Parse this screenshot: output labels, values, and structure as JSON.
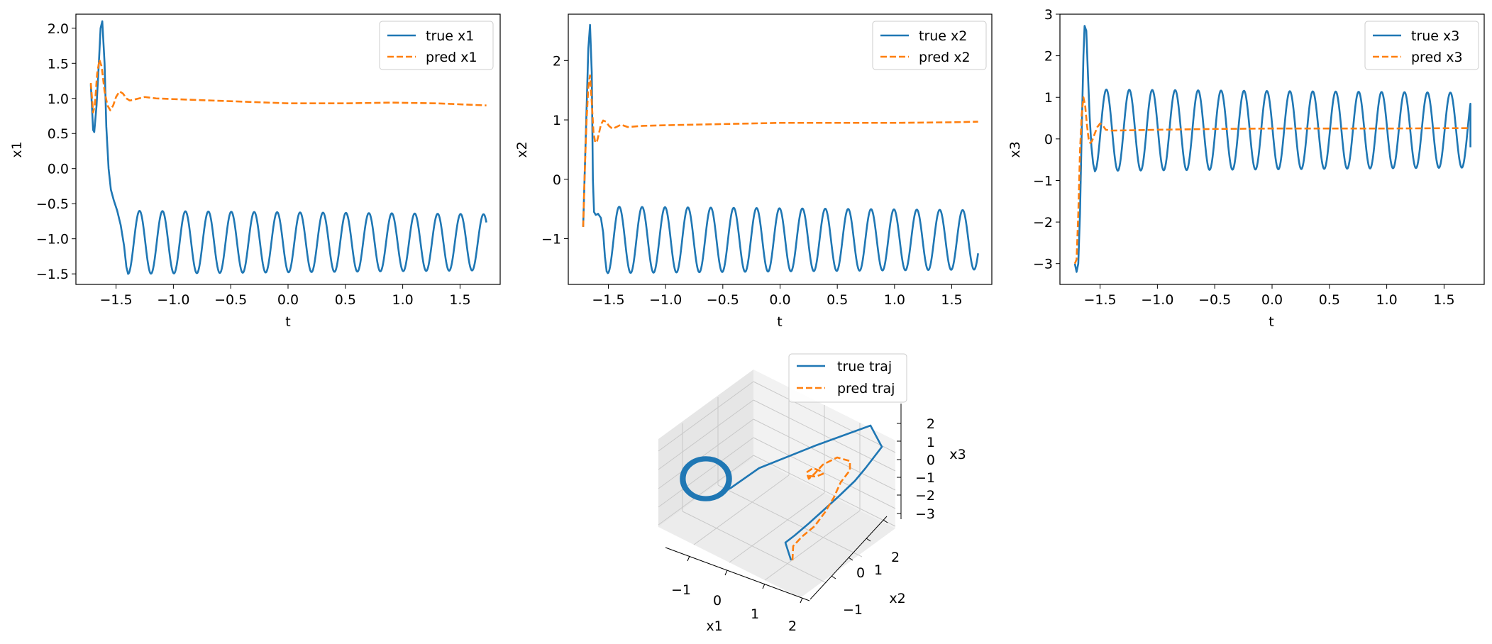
{
  "chart_data": [
    {
      "type": "line",
      "xlabel": "t",
      "ylabel": "x1",
      "xlim": [
        -1.85,
        1.85
      ],
      "ylim": [
        -1.65,
        2.2
      ],
      "xticks": [
        -1.5,
        -1.0,
        -0.5,
        0.0,
        0.5,
        1.0,
        1.5
      ],
      "xtick_labels": [
        "−1.5",
        "−1.0",
        "−0.5",
        "0.0",
        "0.5",
        "1.0",
        "1.5"
      ],
      "yticks": [
        -1.5,
        -1.0,
        -0.5,
        0.0,
        0.5,
        1.0,
        1.5,
        2.0
      ],
      "ytick_labels": [
        "−1.5",
        "−1.0",
        "−0.5",
        "0.0",
        "0.5",
        "1.0",
        "1.5",
        "2.0"
      ],
      "legend_position": "top-right",
      "series": [
        {
          "name": "true x1",
          "style": "solid",
          "color": "#1f77b4",
          "transient": [
            [
              -1.72,
              1.2
            ],
            [
              -1.7,
              0.55
            ],
            [
              -1.69,
              0.52
            ],
            [
              -1.67,
              0.9
            ],
            [
              -1.65,
              1.5
            ],
            [
              -1.635,
              2.0
            ],
            [
              -1.62,
              2.1
            ],
            [
              -1.6,
              1.5
            ],
            [
              -1.585,
              0.6
            ],
            [
              -1.565,
              0.0
            ],
            [
              -1.545,
              -0.3
            ],
            [
              -1.52,
              -0.45
            ],
            [
              -1.49,
              -0.6
            ],
            [
              -1.46,
              -0.8
            ],
            [
              -1.43,
              -1.1
            ],
            [
              -1.41,
              -1.4
            ],
            [
              -1.395,
              -1.5
            ]
          ],
          "oscillation": {
            "t_start": -1.395,
            "t_end": 1.73,
            "center": -1.05,
            "amplitude": 0.45,
            "amplitude_end": 0.4,
            "period": 0.2,
            "phase_start": "min"
          }
        },
        {
          "name": "pred x1",
          "style": "dashed",
          "color": "#ff7f0e",
          "points": [
            [
              -1.72,
              1.22
            ],
            [
              -1.7,
              0.8
            ],
            [
              -1.685,
              0.9
            ],
            [
              -1.665,
              1.35
            ],
            [
              -1.645,
              1.55
            ],
            [
              -1.625,
              1.45
            ],
            [
              -1.6,
              1.1
            ],
            [
              -1.575,
              0.9
            ],
            [
              -1.55,
              0.83
            ],
            [
              -1.525,
              0.9
            ],
            [
              -1.5,
              1.02
            ],
            [
              -1.47,
              1.1
            ],
            [
              -1.44,
              1.07
            ],
            [
              -1.41,
              1.0
            ],
            [
              -1.38,
              0.97
            ],
            [
              -1.35,
              0.98
            ],
            [
              -1.3,
              1.0
            ],
            [
              -1.25,
              1.02
            ],
            [
              -1.15,
              1.0
            ],
            [
              -1.0,
              0.99
            ],
            [
              -0.5,
              0.96
            ],
            [
              0.0,
              0.93
            ],
            [
              0.5,
              0.93
            ],
            [
              0.9,
              0.94
            ],
            [
              1.3,
              0.93
            ],
            [
              1.73,
              0.9
            ]
          ]
        }
      ]
    },
    {
      "type": "line",
      "xlabel": "t",
      "ylabel": "x2",
      "xlim": [
        -1.85,
        1.85
      ],
      "ylim": [
        -1.77,
        2.78
      ],
      "xticks": [
        -1.5,
        -1.0,
        -0.5,
        0.0,
        0.5,
        1.0,
        1.5
      ],
      "xtick_labels": [
        "−1.5",
        "−1.0",
        "−0.5",
        "0.0",
        "0.5",
        "1.0",
        "1.5"
      ],
      "yticks": [
        -1,
        0,
        1,
        2
      ],
      "ytick_labels": [
        "−1",
        "0",
        "1",
        "2"
      ],
      "legend_position": "top-right",
      "series": [
        {
          "name": "true x2",
          "style": "solid",
          "color": "#1f77b4",
          "transient": [
            [
              -1.72,
              -0.8
            ],
            [
              -1.705,
              0.2
            ],
            [
              -1.69,
              1.2
            ],
            [
              -1.675,
              2.2
            ],
            [
              -1.66,
              2.6
            ],
            [
              -1.645,
              1.8
            ],
            [
              -1.635,
              0.0
            ],
            [
              -1.625,
              -0.55
            ],
            [
              -1.61,
              -0.6
            ],
            [
              -1.59,
              -0.58
            ],
            [
              -1.565,
              -0.65
            ],
            [
              -1.545,
              -0.9
            ],
            [
              -1.53,
              -1.3
            ],
            [
              -1.515,
              -1.55
            ],
            [
              -1.505,
              -1.58
            ]
          ],
          "oscillation": {
            "t_start": -1.505,
            "t_end": 1.73,
            "center": -1.02,
            "amplitude": 0.56,
            "amplitude_end": 0.5,
            "period": 0.2,
            "phase_start": "min"
          }
        },
        {
          "name": "pred x2",
          "style": "dashed",
          "color": "#ff7f0e",
          "points": [
            [
              -1.72,
              -0.8
            ],
            [
              -1.705,
              0.2
            ],
            [
              -1.69,
              1.0
            ],
            [
              -1.675,
              1.55
            ],
            [
              -1.66,
              1.75
            ],
            [
              -1.645,
              1.3
            ],
            [
              -1.63,
              0.8
            ],
            [
              -1.615,
              0.62
            ],
            [
              -1.6,
              0.63
            ],
            [
              -1.585,
              0.75
            ],
            [
              -1.565,
              0.92
            ],
            [
              -1.545,
              0.99
            ],
            [
              -1.52,
              0.97
            ],
            [
              -1.495,
              0.9
            ],
            [
              -1.465,
              0.85
            ],
            [
              -1.43,
              0.88
            ],
            [
              -1.39,
              0.92
            ],
            [
              -1.33,
              0.88
            ],
            [
              -1.2,
              0.9
            ],
            [
              -1.0,
              0.91
            ],
            [
              -0.5,
              0.93
            ],
            [
              0.0,
              0.95
            ],
            [
              0.5,
              0.95
            ],
            [
              1.0,
              0.95
            ],
            [
              1.5,
              0.96
            ],
            [
              1.73,
              0.97
            ]
          ]
        }
      ]
    },
    {
      "type": "line",
      "xlabel": "t",
      "ylabel": "x3",
      "xlim": [
        -1.85,
        1.85
      ],
      "ylim": [
        -3.5,
        3.0
      ],
      "xticks": [
        -1.5,
        -1.0,
        -0.5,
        0.0,
        0.5,
        1.0,
        1.5
      ],
      "xtick_labels": [
        "−1.5",
        "−1.0",
        "−0.5",
        "0.0",
        "0.5",
        "1.0",
        "1.5"
      ],
      "yticks": [
        -3,
        -2,
        -1,
        0,
        1,
        2,
        3
      ],
      "ytick_labels": [
        "−3",
        "−2",
        "−1",
        "0",
        "1",
        "2",
        "3"
      ],
      "legend_position": "top-right",
      "series": [
        {
          "name": "true x3",
          "style": "solid",
          "color": "#1f77b4",
          "transient": [
            [
              -1.72,
              -3.0
            ],
            [
              -1.705,
              -3.2
            ],
            [
              -1.69,
              -3.0
            ],
            [
              -1.675,
              -1.8
            ],
            [
              -1.66,
              0.2
            ],
            [
              -1.645,
              2.0
            ],
            [
              -1.635,
              2.72
            ],
            [
              -1.62,
              2.6
            ],
            [
              -1.605,
              1.5
            ],
            [
              -1.59,
              0.5
            ],
            [
              -1.575,
              -0.2
            ],
            [
              -1.56,
              -0.6
            ],
            [
              -1.545,
              -0.78
            ]
          ],
          "oscillation": {
            "t_start": -1.545,
            "t_end": 1.73,
            "center": 0.21,
            "amplitude": 0.98,
            "amplitude_end": 0.9,
            "period": 0.2,
            "phase_start": "min",
            "end_value": -0.2
          }
        },
        {
          "name": "pred x3",
          "style": "dashed",
          "color": "#ff7f0e",
          "points": [
            [
              -1.72,
              -3.0
            ],
            [
              -1.705,
              -2.9
            ],
            [
              -1.69,
              -1.8
            ],
            [
              -1.675,
              -0.3
            ],
            [
              -1.66,
              0.6
            ],
            [
              -1.645,
              1.0
            ],
            [
              -1.63,
              0.8
            ],
            [
              -1.615,
              0.35
            ],
            [
              -1.6,
              0.0
            ],
            [
              -1.585,
              -0.1
            ],
            [
              -1.57,
              -0.05
            ],
            [
              -1.55,
              0.1
            ],
            [
              -1.525,
              0.28
            ],
            [
              -1.5,
              0.37
            ],
            [
              -1.475,
              0.32
            ],
            [
              -1.45,
              0.22
            ],
            [
              -1.4,
              0.2
            ],
            [
              -1.0,
              0.22
            ],
            [
              -0.5,
              0.24
            ],
            [
              0.0,
              0.25
            ],
            [
              0.5,
              0.25
            ],
            [
              1.0,
              0.25
            ],
            [
              1.73,
              0.26
            ]
          ]
        }
      ]
    },
    {
      "type": "line3d",
      "xlabel": "x1",
      "ylabel": "x2",
      "zlabel": "x3",
      "xtick_labels": [
        "−1",
        "0",
        "1",
        "2"
      ],
      "ytick_labels": [
        "−1",
        "0",
        "1",
        "2"
      ],
      "ztick_labels": [
        "2",
        "1",
        "0",
        "−1",
        "−2",
        "−3"
      ],
      "legend_position": "top-center",
      "series": [
        {
          "name": "true traj",
          "style": "solid",
          "color": "#1f77b4"
        },
        {
          "name": "pred traj",
          "style": "dashed",
          "color": "#ff7f0e"
        }
      ]
    }
  ]
}
